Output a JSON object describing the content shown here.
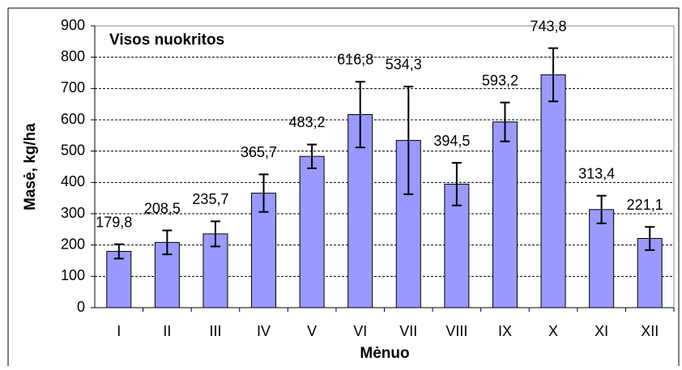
{
  "chart_data": {
    "type": "bar",
    "title": "Visos nuokritos",
    "x_label": "Mėnuo",
    "y_label": "Masė, kg/ha",
    "categories": [
      "I",
      "II",
      "III",
      "IV",
      "V",
      "VI",
      "VII",
      "VIII",
      "IX",
      "X",
      "XI",
      "XII"
    ],
    "values": [
      179.8,
      208.5,
      235.7,
      365.7,
      483.2,
      616.8,
      534.3,
      394.5,
      593.2,
      743.8,
      313.4,
      221.1
    ],
    "value_labels": [
      "179,8",
      "208,5",
      "235,7",
      "365,7",
      "483,2",
      "616,8",
      "534,3",
      "394,5",
      "593,2",
      "743,8",
      "313,4",
      "221,1"
    ],
    "errors": [
      23,
      38,
      40,
      60,
      38,
      105,
      172,
      68,
      62,
      85,
      44,
      37
    ],
    "color": "#9999ff",
    "ylim": [
      0,
      900
    ],
    "yticks": [
      0,
      100,
      200,
      300,
      400,
      500,
      600,
      700,
      800,
      900
    ],
    "grid": true
  }
}
